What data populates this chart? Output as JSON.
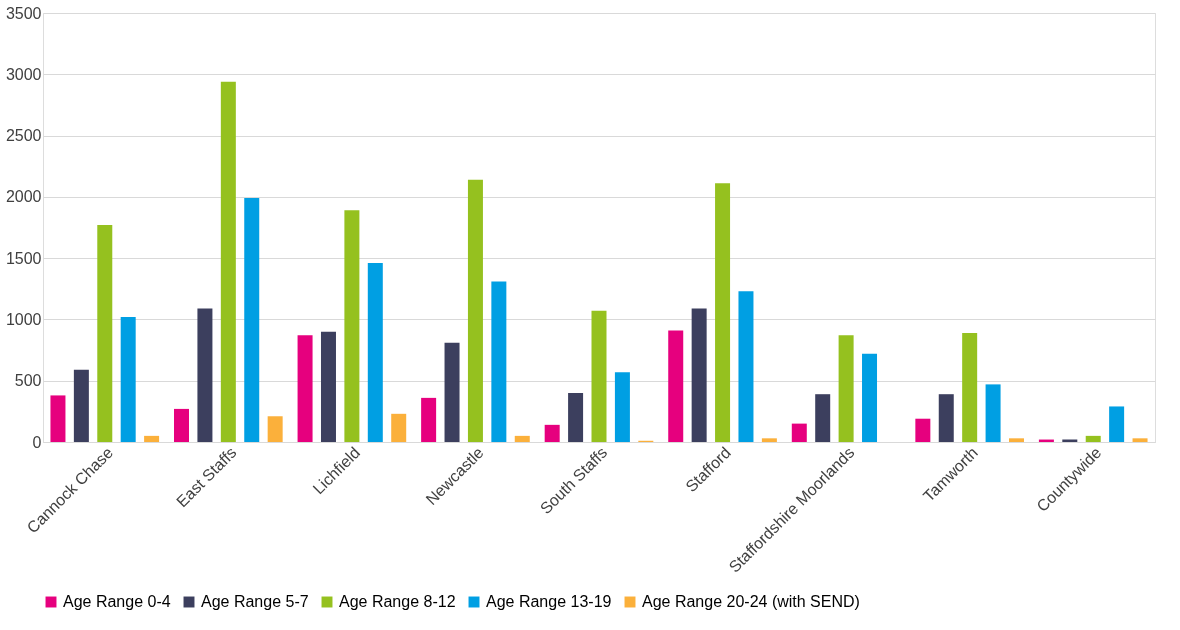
{
  "chart_data": {
    "type": "bar",
    "categories": [
      "Cannock Chase",
      "East Staffs",
      "Lichfield",
      "Newcastle",
      "South Staffs",
      "Stafford",
      "Staffordshire Moorlands",
      "Tamworth",
      "Countywide"
    ],
    "series": [
      {
        "name": "Age Range 0-4",
        "color": "#e6007e",
        "values": [
          380,
          270,
          870,
          360,
          140,
          910,
          150,
          190,
          20
        ]
      },
      {
        "name": "Age Range 5-7",
        "color": "#3c3f5e",
        "values": [
          590,
          1090,
          900,
          810,
          400,
          1090,
          390,
          390,
          20
        ]
      },
      {
        "name": "Age Range 8-12",
        "color": "#95c11f",
        "values": [
          1770,
          2940,
          1890,
          2140,
          1070,
          2110,
          870,
          890,
          50
        ]
      },
      {
        "name": "Age Range 13-19",
        "color": "#009fe3",
        "values": [
          1020,
          1990,
          1460,
          1310,
          570,
          1230,
          720,
          470,
          290
        ]
      },
      {
        "name": "Age Range 20-24 (with SEND)",
        "color": "#fbb03b",
        "values": [
          50,
          210,
          230,
          50,
          10,
          30,
          0,
          30,
          30
        ]
      }
    ],
    "ylim": [
      0,
      3500
    ],
    "yticks": [
      0,
      500,
      1000,
      1500,
      2000,
      2500,
      3000,
      3500
    ],
    "grid": "y",
    "legend": "bottom"
  }
}
